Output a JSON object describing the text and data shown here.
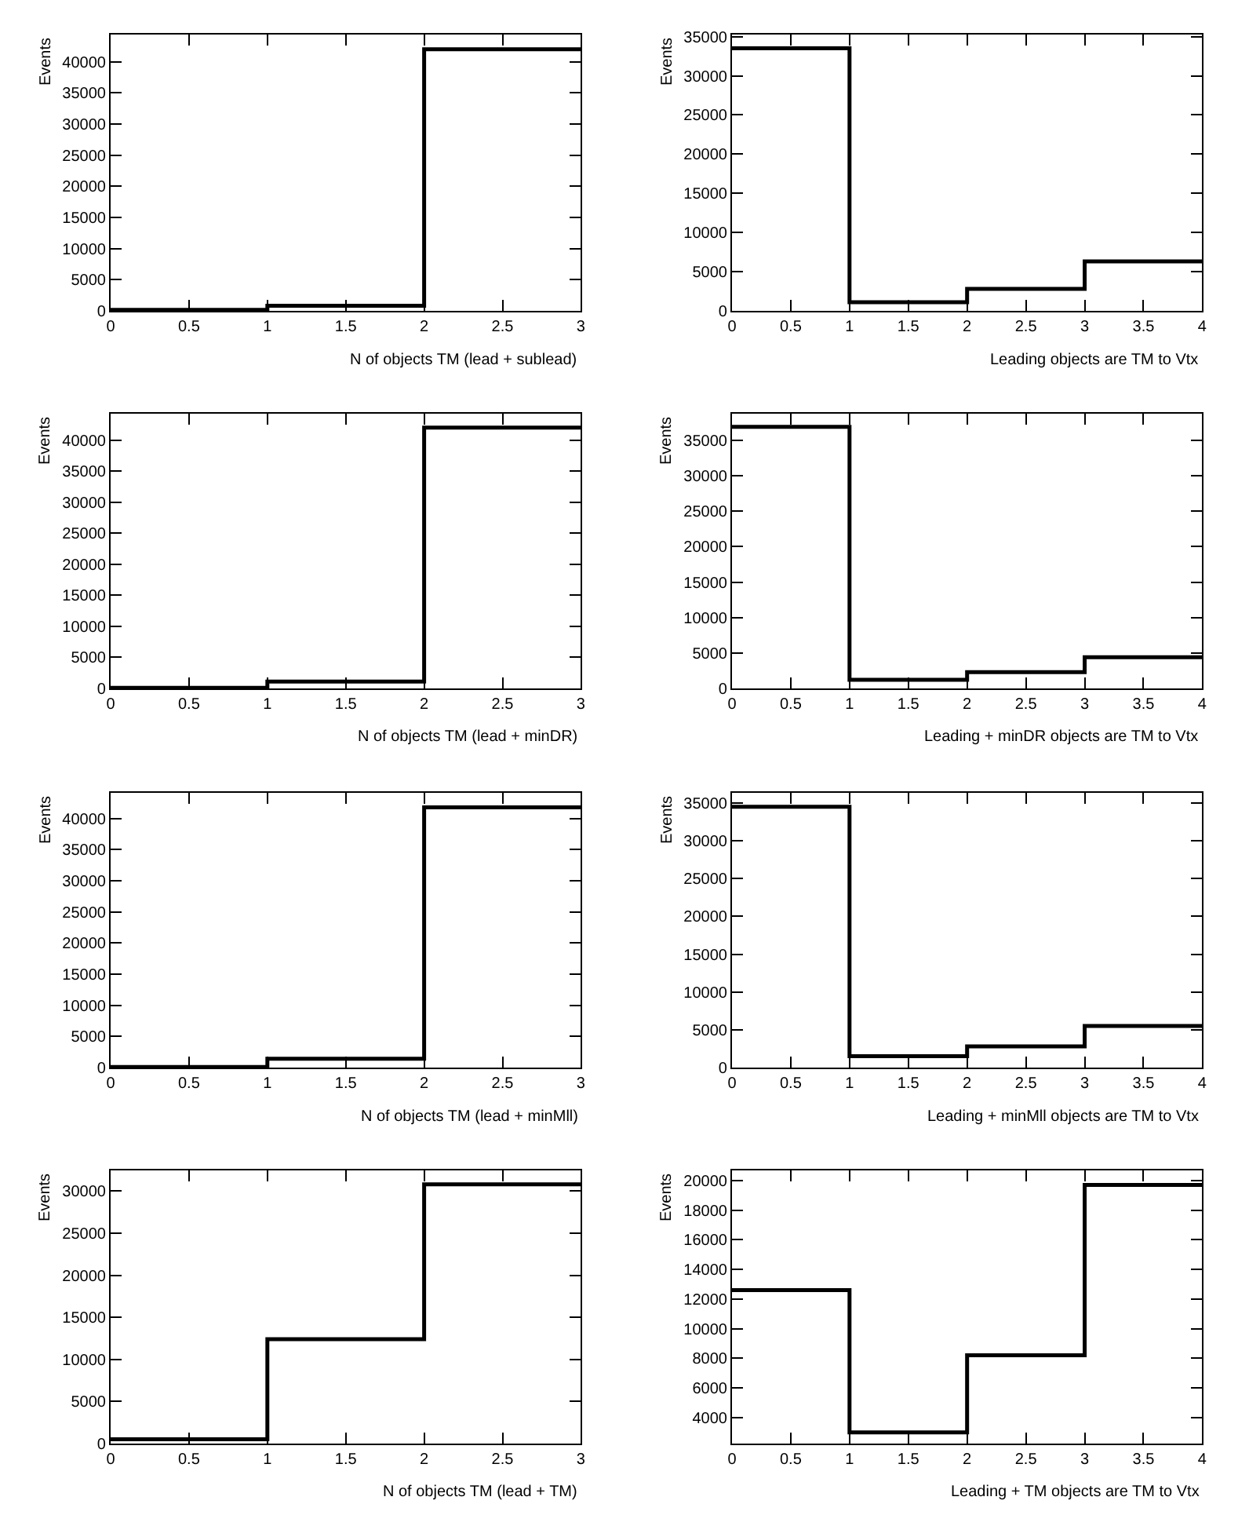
{
  "chart_data": [
    {
      "type": "histogram",
      "xlabel": "N of objects TM (lead + sublead)",
      "ylabel": "Events",
      "bins": [
        0,
        1,
        2,
        3
      ],
      "values": [
        150,
        800,
        42000
      ],
      "color": "#000000",
      "xlim": [
        0,
        3
      ],
      "ylim": [
        0,
        44400
      ],
      "xticks": [
        0,
        0.5,
        1,
        1.5,
        2,
        2.5,
        3
      ],
      "yticks": [
        0,
        5000,
        10000,
        15000,
        20000,
        25000,
        30000,
        35000,
        40000
      ]
    },
    {
      "type": "histogram",
      "xlabel": "Leading objects are TM to Vtx",
      "ylabel": "Events",
      "bins": [
        0,
        1,
        2,
        3,
        4
      ],
      "values": [
        33500,
        1100,
        2800,
        6300
      ],
      "color": "#000000",
      "xlim": [
        0,
        4
      ],
      "ylim": [
        0,
        35300
      ],
      "xticks": [
        0,
        0.5,
        1,
        1.5,
        2,
        2.5,
        3,
        3.5,
        4
      ],
      "yticks": [
        0,
        5000,
        10000,
        15000,
        20000,
        25000,
        30000,
        35000
      ]
    },
    {
      "type": "histogram",
      "xlabel": "N of objects TM (lead + minDR)",
      "ylabel": "Events",
      "bins": [
        0,
        1,
        2,
        3
      ],
      "values": [
        100,
        1100,
        42000
      ],
      "color": "#000000",
      "xlim": [
        0,
        3
      ],
      "ylim": [
        0,
        44300
      ],
      "xticks": [
        0,
        0.5,
        1,
        1.5,
        2,
        2.5,
        3
      ],
      "yticks": [
        0,
        5000,
        10000,
        15000,
        20000,
        25000,
        30000,
        35000,
        40000
      ]
    },
    {
      "type": "histogram",
      "xlabel": "Leading + minDR objects are TM to Vtx",
      "ylabel": "Events",
      "bins": [
        0,
        1,
        2,
        3,
        4
      ],
      "values": [
        36900,
        1200,
        2300,
        4400
      ],
      "color": "#000000",
      "xlim": [
        0,
        4
      ],
      "ylim": [
        0,
        38800
      ],
      "xticks": [
        0,
        0.5,
        1,
        1.5,
        2,
        2.5,
        3,
        3.5,
        4
      ],
      "yticks": [
        0,
        5000,
        10000,
        15000,
        20000,
        25000,
        30000,
        35000
      ]
    },
    {
      "type": "histogram",
      "xlabel": "N of objects TM (lead + minMll)",
      "ylabel": "Events",
      "bins": [
        0,
        1,
        2,
        3
      ],
      "values": [
        100,
        1400,
        41800
      ],
      "color": "#000000",
      "xlim": [
        0,
        3
      ],
      "ylim": [
        0,
        44200
      ],
      "xticks": [
        0,
        0.5,
        1,
        1.5,
        2,
        2.5,
        3
      ],
      "yticks": [
        0,
        5000,
        10000,
        15000,
        20000,
        25000,
        30000,
        35000,
        40000
      ]
    },
    {
      "type": "histogram",
      "xlabel": "Leading + minMll objects are TM to Vtx",
      "ylabel": "Events",
      "bins": [
        0,
        1,
        2,
        3,
        4
      ],
      "values": [
        34500,
        1500,
        2800,
        5500
      ],
      "color": "#000000",
      "xlim": [
        0,
        4
      ],
      "ylim": [
        0,
        36400
      ],
      "xticks": [
        0,
        0.5,
        1,
        1.5,
        2,
        2.5,
        3,
        3.5,
        4
      ],
      "yticks": [
        0,
        5000,
        10000,
        15000,
        20000,
        25000,
        30000,
        35000
      ]
    },
    {
      "type": "histogram",
      "xlabel": "N of objects TM (lead + TM)",
      "ylabel": "Events",
      "bins": [
        0,
        1,
        2,
        3
      ],
      "values": [
        500,
        12400,
        30800
      ],
      "color": "#000000",
      "xlim": [
        0,
        3
      ],
      "ylim": [
        0,
        32500
      ],
      "xticks": [
        0,
        0.5,
        1,
        1.5,
        2,
        2.5,
        3
      ],
      "yticks": [
        0,
        5000,
        10000,
        15000,
        20000,
        25000,
        30000
      ]
    },
    {
      "type": "histogram",
      "xlabel": "Leading + TM objects are TM to Vtx",
      "ylabel": "Events",
      "bins": [
        0,
        1,
        2,
        3,
        4
      ],
      "values": [
        12600,
        3000,
        8200,
        19700
      ],
      "color": "#000000",
      "xlim": [
        0,
        4
      ],
      "ylim": [
        2250,
        20700
      ],
      "xticks": [
        0,
        0.5,
        1,
        1.5,
        2,
        2.5,
        3,
        3.5,
        4
      ],
      "yticks": [
        4000,
        6000,
        8000,
        10000,
        12000,
        14000,
        16000,
        18000,
        20000
      ]
    }
  ]
}
